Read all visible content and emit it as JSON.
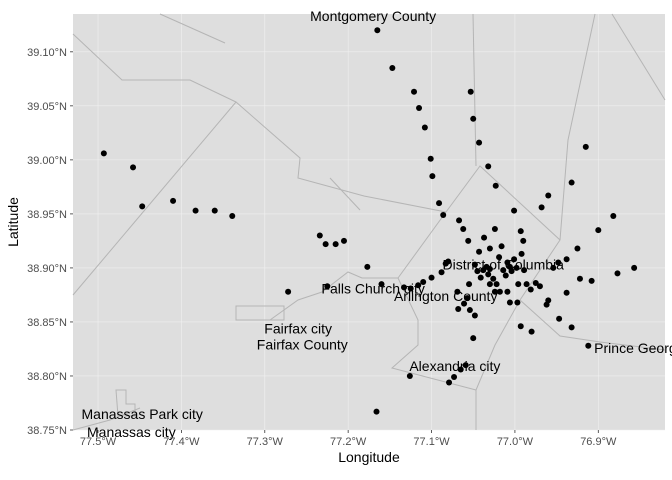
{
  "chart_data": {
    "type": "scatter",
    "xlabel": "Longitude",
    "ylabel": "Latitude",
    "xlim": [
      -77.53,
      -76.82
    ],
    "ylim": [
      38.75,
      39.135
    ],
    "grid": true,
    "x_ticks": [
      {
        "value": -77.5,
        "label": "77.5°W"
      },
      {
        "value": -77.4,
        "label": "77.4°W"
      },
      {
        "value": -77.3,
        "label": "77.3°W"
      },
      {
        "value": -77.2,
        "label": "77.2°W"
      },
      {
        "value": -77.1,
        "label": "77.1°W"
      },
      {
        "value": -77.0,
        "label": "77.0°W"
      },
      {
        "value": -76.9,
        "label": "76.9°W"
      }
    ],
    "y_ticks": [
      {
        "value": 38.75,
        "label": "38.75°N"
      },
      {
        "value": 38.8,
        "label": "38.80°N"
      },
      {
        "value": 38.85,
        "label": "38.85°N"
      },
      {
        "value": 38.9,
        "label": "38.90°N"
      },
      {
        "value": 38.95,
        "label": "38.95°N"
      },
      {
        "value": 39.0,
        "label": "39.00°N"
      },
      {
        "value": 39.05,
        "label": "39.05°N"
      },
      {
        "value": 39.1,
        "label": "39.10°N"
      }
    ],
    "region_labels": [
      {
        "text": "Montgomery County",
        "lon": -77.17,
        "lat": 39.133
      },
      {
        "text": "District of Columbia",
        "lon": -77.014,
        "lat": 38.903
      },
      {
        "text": "Falls Church city",
        "lon": -77.17,
        "lat": 38.881
      },
      {
        "text": "Arlington County",
        "lon": -77.083,
        "lat": 38.874
      },
      {
        "text": "Fairfax city",
        "lon": -77.26,
        "lat": 38.844
      },
      {
        "text": "Fairfax County",
        "lon": -77.255,
        "lat": 38.829
      },
      {
        "text": "Prince George's",
        "lon": -76.845,
        "lat": 38.826
      },
      {
        "text": "Alexandria city",
        "lon": -77.072,
        "lat": 38.809
      },
      {
        "text": "Manassas Park city",
        "lon": -77.447,
        "lat": 38.765
      },
      {
        "text": "Manassas city",
        "lon": -77.46,
        "lat": 38.748
      }
    ],
    "points": [
      [
        -77.165,
        39.12
      ],
      [
        -77.147,
        39.085
      ],
      [
        -77.121,
        39.063
      ],
      [
        -77.115,
        39.048
      ],
      [
        -77.108,
        39.03
      ],
      [
        -77.101,
        39.001
      ],
      [
        -77.099,
        38.985
      ],
      [
        -77.053,
        39.063
      ],
      [
        -77.05,
        39.038
      ],
      [
        -77.043,
        39.016
      ],
      [
        -77.032,
        38.994
      ],
      [
        -77.023,
        38.976
      ],
      [
        -77.001,
        38.953
      ],
      [
        -76.99,
        38.925
      ],
      [
        -77.493,
        39.006
      ],
      [
        -77.458,
        38.993
      ],
      [
        -77.447,
        38.957
      ],
      [
        -77.41,
        38.962
      ],
      [
        -77.383,
        38.953
      ],
      [
        -77.36,
        38.953
      ],
      [
        -77.339,
        38.948
      ],
      [
        -77.234,
        38.93
      ],
      [
        -77.227,
        38.922
      ],
      [
        -77.215,
        38.922
      ],
      [
        -77.205,
        38.925
      ],
      [
        -77.177,
        38.901
      ],
      [
        -77.272,
        38.878
      ],
      [
        -77.225,
        38.883
      ],
      [
        -77.16,
        38.885
      ],
      [
        -77.133,
        38.882
      ],
      [
        -77.125,
        38.881
      ],
      [
        -77.116,
        38.884
      ],
      [
        -77.11,
        38.887
      ],
      [
        -77.1,
        38.891
      ],
      [
        -77.088,
        38.896
      ],
      [
        -77.08,
        38.906
      ],
      [
        -77.091,
        38.96
      ],
      [
        -77.086,
        38.949
      ],
      [
        -77.067,
        38.944
      ],
      [
        -77.062,
        38.936
      ],
      [
        -77.056,
        38.925
      ],
      [
        -77.043,
        38.915
      ],
      [
        -77.037,
        38.928
      ],
      [
        -77.03,
        38.918
      ],
      [
        -77.024,
        38.936
      ],
      [
        -77.019,
        38.91
      ],
      [
        -77.016,
        38.92
      ],
      [
        -77.014,
        38.898
      ],
      [
        -77.011,
        38.893
      ],
      [
        -77.009,
        38.905
      ],
      [
        -77.006,
        38.901
      ],
      [
        -77.004,
        38.897
      ],
      [
        -77.001,
        38.908
      ],
      [
        -76.998,
        38.9
      ],
      [
        -76.996,
        38.885
      ],
      [
        -76.993,
        38.934
      ],
      [
        -76.992,
        38.913
      ],
      [
        -76.989,
        38.898
      ],
      [
        -76.986,
        38.885
      ],
      [
        -76.981,
        38.88
      ],
      [
        -76.975,
        38.886
      ],
      [
        -77.03,
        38.899
      ],
      [
        -77.032,
        38.894
      ],
      [
        -77.026,
        38.89
      ],
      [
        -77.022,
        38.885
      ],
      [
        -77.018,
        38.878
      ],
      [
        -77.024,
        38.878
      ],
      [
        -77.03,
        38.885
      ],
      [
        -77.034,
        38.901
      ],
      [
        -77.038,
        38.898
      ],
      [
        -77.041,
        38.891
      ],
      [
        -77.045,
        38.897
      ],
      [
        -77.048,
        38.903
      ],
      [
        -77.055,
        38.885
      ],
      [
        -77.057,
        38.872
      ],
      [
        -77.061,
        38.867
      ],
      [
        -77.054,
        38.861
      ],
      [
        -77.048,
        38.856
      ],
      [
        -77.068,
        38.862
      ],
      [
        -77.069,
        38.878
      ],
      [
        -77.083,
        38.904
      ],
      [
        -77.009,
        38.878
      ],
      [
        -77.006,
        38.868
      ],
      [
        -76.997,
        38.868
      ],
      [
        -76.993,
        38.846
      ],
      [
        -76.98,
        38.841
      ],
      [
        -76.962,
        38.866
      ],
      [
        -76.947,
        38.853
      ],
      [
        -76.938,
        38.877
      ],
      [
        -76.954,
        38.9
      ],
      [
        -76.948,
        38.905
      ],
      [
        -76.938,
        38.908
      ],
      [
        -76.922,
        38.89
      ],
      [
        -76.925,
        38.918
      ],
      [
        -76.908,
        38.888
      ],
      [
        -76.877,
        38.895
      ],
      [
        -76.857,
        38.9
      ],
      [
        -76.882,
        38.948
      ],
      [
        -76.9,
        38.935
      ],
      [
        -76.932,
        38.979
      ],
      [
        -76.915,
        39.012
      ],
      [
        -76.96,
        38.967
      ],
      [
        -76.968,
        38.956
      ],
      [
        -76.932,
        38.845
      ],
      [
        -76.912,
        38.828
      ],
      [
        -76.97,
        38.883
      ],
      [
        -76.96,
        38.87
      ],
      [
        -77.05,
        38.835
      ],
      [
        -77.059,
        38.81
      ],
      [
        -77.065,
        38.806
      ],
      [
        -77.073,
        38.799
      ],
      [
        -77.079,
        38.794
      ],
      [
        -77.126,
        38.8
      ],
      [
        -77.166,
        38.767
      ]
    ]
  }
}
